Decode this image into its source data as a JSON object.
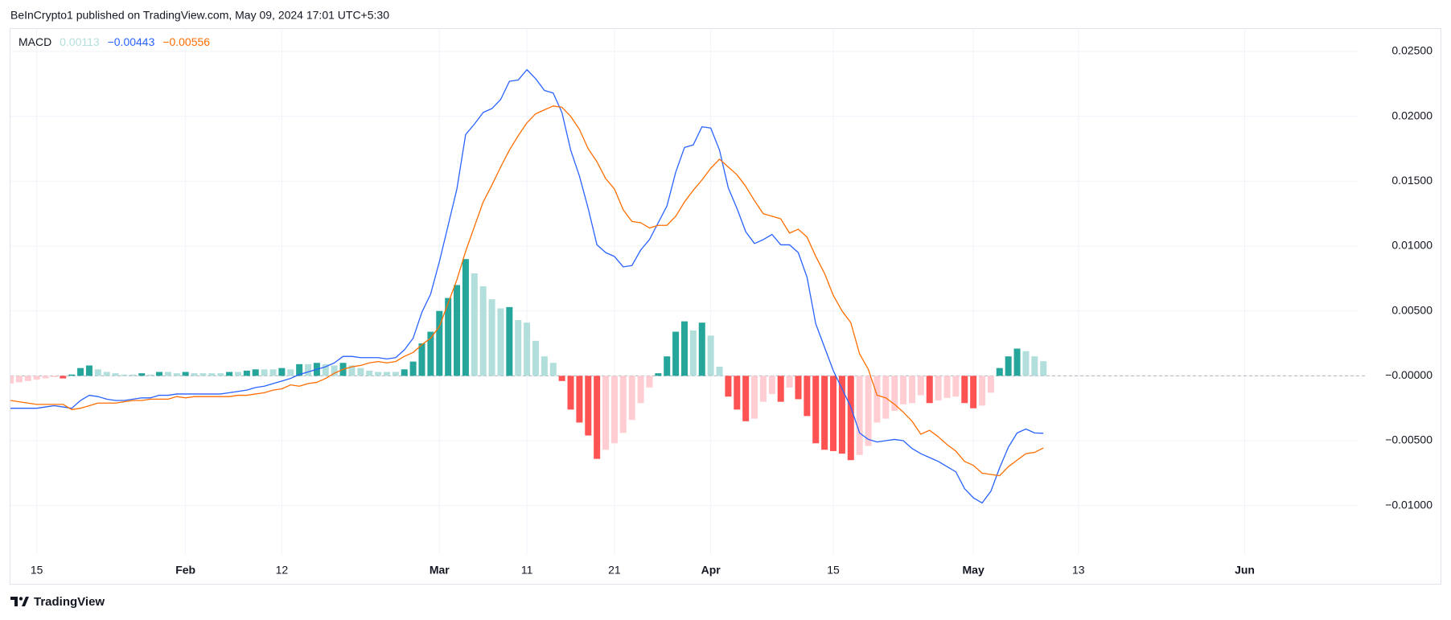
{
  "header": "BeInCrypto1 published on TradingView.com, May 09, 2024 17:01 UTC+5:30",
  "footer": "TradingView",
  "chart_data": {
    "type": "macd",
    "legend": {
      "label": "MACD",
      "values": [
        {
          "value": 0.00113,
          "label": "0.00113"
        },
        {
          "value": -0.00443,
          "label": "−0.00443"
        },
        {
          "value": -0.00556,
          "label": "−0.00556"
        }
      ]
    },
    "x": [
      "2024-01-12",
      "2024-01-13",
      "2024-01-14",
      "2024-01-15",
      "2024-01-16",
      "2024-01-17",
      "2024-01-18",
      "2024-01-19",
      "2024-01-20",
      "2024-01-21",
      "2024-01-22",
      "2024-01-23",
      "2024-01-24",
      "2024-01-25",
      "2024-01-26",
      "2024-01-27",
      "2024-01-28",
      "2024-01-29",
      "2024-01-30",
      "2024-01-31",
      "2024-02-01",
      "2024-02-02",
      "2024-02-03",
      "2024-02-04",
      "2024-02-05",
      "2024-02-06",
      "2024-02-07",
      "2024-02-08",
      "2024-02-09",
      "2024-02-10",
      "2024-02-11",
      "2024-02-12",
      "2024-02-13",
      "2024-02-14",
      "2024-02-15",
      "2024-02-16",
      "2024-02-17",
      "2024-02-18",
      "2024-02-19",
      "2024-02-20",
      "2024-02-21",
      "2024-02-22",
      "2024-02-23",
      "2024-02-24",
      "2024-02-25",
      "2024-02-26",
      "2024-02-27",
      "2024-02-28",
      "2024-02-29",
      "2024-03-01",
      "2024-03-02",
      "2024-03-03",
      "2024-03-04",
      "2024-03-05",
      "2024-03-06",
      "2024-03-07",
      "2024-03-08",
      "2024-03-09",
      "2024-03-10",
      "2024-03-11",
      "2024-03-12",
      "2024-03-13",
      "2024-03-14",
      "2024-03-15",
      "2024-03-16",
      "2024-03-17",
      "2024-03-18",
      "2024-03-19",
      "2024-03-20",
      "2024-03-21",
      "2024-03-22",
      "2024-03-23",
      "2024-03-24",
      "2024-03-25",
      "2024-03-26",
      "2024-03-27",
      "2024-03-28",
      "2024-03-29",
      "2024-03-30",
      "2024-03-31",
      "2024-04-01",
      "2024-04-02",
      "2024-04-03",
      "2024-04-04",
      "2024-04-05",
      "2024-04-06",
      "2024-04-07",
      "2024-04-08",
      "2024-04-09",
      "2024-04-10",
      "2024-04-11",
      "2024-04-12",
      "2024-04-13",
      "2024-04-14",
      "2024-04-15",
      "2024-04-16",
      "2024-04-17",
      "2024-04-18",
      "2024-04-19",
      "2024-04-20",
      "2024-04-21",
      "2024-04-22",
      "2024-04-23",
      "2024-04-24",
      "2024-04-25",
      "2024-04-26",
      "2024-04-27",
      "2024-04-28",
      "2024-04-29",
      "2024-04-30",
      "2024-05-01",
      "2024-05-02",
      "2024-05-03",
      "2024-05-04",
      "2024-05-05",
      "2024-05-06",
      "2024-05-07",
      "2024-05-08",
      "2024-05-09"
    ],
    "series": [
      {
        "kind": "histogram",
        "colors": {
          "grow_above": "#26a69a",
          "fall_above": "#b2dfdb",
          "grow_below": "#ffcdd2",
          "fall_below": "#ff5252"
        },
        "values": [
          -0.0006,
          -0.0005,
          -0.0004,
          -0.0003,
          -0.0002,
          -0.0001,
          -0.0002,
          0.0001,
          0.0006,
          0.0008,
          0.0005,
          0.0003,
          0.0002,
          0.0001,
          0.0001,
          0.0002,
          0.0001,
          0.0003,
          0.0003,
          0.0002,
          0.0003,
          0.0002,
          0.0002,
          0.0002,
          0.0002,
          0.0003,
          0.0003,
          0.0004,
          0.0005,
          0.0005,
          0.0005,
          0.0006,
          0.0005,
          0.0009,
          0.0009,
          0.001,
          0.0009,
          0.0008,
          0.001,
          0.0008,
          0.0006,
          0.0004,
          0.0003,
          0.0003,
          0.0003,
          0.0005,
          0.0011,
          0.0025,
          0.0034,
          0.005,
          0.006,
          0.007,
          0.009,
          0.0079,
          0.0069,
          0.0059,
          0.0052,
          0.0053,
          0.0043,
          0.0041,
          0.0027,
          0.0015,
          0.001,
          -0.0004,
          -0.0026,
          -0.0036,
          -0.0046,
          -0.0064,
          -0.0057,
          -0.0052,
          -0.0044,
          -0.0034,
          -0.0021,
          -0.0009,
          0.0002,
          0.0015,
          0.0034,
          0.0042,
          0.0035,
          0.0041,
          0.0031,
          0.0007,
          -0.0016,
          -0.0026,
          -0.0035,
          -0.0033,
          -0.002,
          -0.0014,
          -0.002,
          -0.0009,
          -0.0018,
          -0.0031,
          -0.0052,
          -0.0057,
          -0.0058,
          -0.006,
          -0.0065,
          -0.0061,
          -0.0054,
          -0.0036,
          -0.0033,
          -0.0027,
          -0.0022,
          -0.0021,
          -0.0015,
          -0.0021,
          -0.0019,
          -0.0017,
          -0.0016,
          -0.0021,
          -0.0025,
          -0.0023,
          -0.0013,
          0.0006,
          0.0015,
          0.0021,
          0.0019,
          0.0015,
          0.00113
        ]
      },
      {
        "kind": "line",
        "color": "#2962ff",
        "values": [
          -0.0025,
          -0.0025,
          -0.0025,
          -0.0025,
          -0.0024,
          -0.0023,
          -0.0024,
          -0.0025,
          -0.0019,
          -0.0015,
          -0.0016,
          -0.0018,
          -0.0019,
          -0.0019,
          -0.0018,
          -0.0017,
          -0.0017,
          -0.0015,
          -0.0015,
          -0.0014,
          -0.0014,
          -0.0014,
          -0.0014,
          -0.0014,
          -0.0014,
          -0.0013,
          -0.0012,
          -0.0011,
          -0.0009,
          -0.0008,
          -0.0006,
          -0.0004,
          -0.0002,
          0.0001,
          0.0003,
          0.0005,
          0.0007,
          0.001,
          0.0015,
          0.0015,
          0.0014,
          0.0014,
          0.0014,
          0.0013,
          0.0014,
          0.002,
          0.0029,
          0.0049,
          0.0063,
          0.0088,
          0.0116,
          0.0144,
          0.0186,
          0.0194,
          0.0203,
          0.0206,
          0.0213,
          0.0227,
          0.0228,
          0.0236,
          0.0229,
          0.022,
          0.0218,
          0.0203,
          0.0174,
          0.0154,
          0.0129,
          0.0101,
          0.0095,
          0.0092,
          0.0084,
          0.0085,
          0.0097,
          0.0105,
          0.0118,
          0.0131,
          0.0157,
          0.0176,
          0.0178,
          0.0192,
          0.0191,
          0.0174,
          0.0145,
          0.0129,
          0.0111,
          0.0102,
          0.0105,
          0.0109,
          0.0101,
          0.0101,
          0.0095,
          0.0076,
          0.004,
          0.0022,
          0.0004,
          -0.001,
          -0.0024,
          -0.0044,
          -0.0049,
          -0.0051,
          -0.005,
          -0.0049,
          -0.005,
          -0.0056,
          -0.006,
          -0.0063,
          -0.0066,
          -0.007,
          -0.0074,
          -0.0087,
          -0.0094,
          -0.0098,
          -0.0089,
          -0.0071,
          -0.0055,
          -0.0044,
          -0.0041,
          -0.0044,
          -0.00443
        ]
      },
      {
        "kind": "line",
        "color": "#ff6d00",
        "values": [
          -0.0019,
          -0.002,
          -0.0021,
          -0.0022,
          -0.0022,
          -0.0022,
          -0.0022,
          -0.0026,
          -0.0025,
          -0.0023,
          -0.0021,
          -0.0021,
          -0.0021,
          -0.002,
          -0.0019,
          -0.0019,
          -0.0018,
          -0.0018,
          -0.0018,
          -0.0016,
          -0.0017,
          -0.0016,
          -0.0016,
          -0.0016,
          -0.0016,
          -0.0016,
          -0.0015,
          -0.0015,
          -0.0014,
          -0.0013,
          -0.0011,
          -0.001,
          -0.0007,
          -0.0008,
          -0.0006,
          -0.0005,
          -0.0002,
          0.0002,
          0.0005,
          0.0007,
          0.0008,
          0.001,
          0.0011,
          0.001,
          0.0011,
          0.0015,
          0.0018,
          0.0024,
          0.0029,
          0.0038,
          0.0056,
          0.0074,
          0.0096,
          0.0115,
          0.0134,
          0.0147,
          0.0161,
          0.0174,
          0.0185,
          0.0195,
          0.0202,
          0.0205,
          0.0208,
          0.0207,
          0.02,
          0.019,
          0.0175,
          0.0165,
          0.0152,
          0.0144,
          0.0128,
          0.0119,
          0.0118,
          0.0114,
          0.0116,
          0.0116,
          0.0123,
          0.0134,
          0.0143,
          0.0151,
          0.016,
          0.0167,
          0.0161,
          0.0155,
          0.0146,
          0.0135,
          0.0125,
          0.0123,
          0.0121,
          0.011,
          0.0113,
          0.0107,
          0.0092,
          0.0079,
          0.0062,
          0.005,
          0.0041,
          0.0017,
          0.0005,
          -0.0015,
          -0.0017,
          -0.0022,
          -0.0028,
          -0.0035,
          -0.0045,
          -0.0042,
          -0.0047,
          -0.0053,
          -0.0058,
          -0.0066,
          -0.0069,
          -0.0075,
          -0.0076,
          -0.0077,
          -0.007,
          -0.0065,
          -0.006,
          -0.0059,
          -0.00556
        ]
      }
    ],
    "xlim": [
      "2024-01-12",
      "2024-06-14"
    ],
    "xticks": [
      {
        "value": "2024-01-15",
        "label": "15"
      },
      {
        "value": "2024-02-01",
        "label": "Feb"
      },
      {
        "value": "2024-02-12",
        "label": "12"
      },
      {
        "value": "2024-03-01",
        "label": "Mar"
      },
      {
        "value": "2024-03-11",
        "label": "11"
      },
      {
        "value": "2024-03-21",
        "label": "21"
      },
      {
        "value": "2024-04-01",
        "label": "Apr"
      },
      {
        "value": "2024-04-15",
        "label": "15"
      },
      {
        "value": "2024-05-01",
        "label": "May"
      },
      {
        "value": "2024-05-13",
        "label": "13"
      },
      {
        "value": "2024-06-01",
        "label": "Jun"
      }
    ],
    "ylim": [
      -0.0138,
      0.0268
    ],
    "yticks": [
      {
        "value": 0.025,
        "label": "0.02500"
      },
      {
        "value": 0.02,
        "label": "0.02000"
      },
      {
        "value": 0.015,
        "label": "0.01500"
      },
      {
        "value": 0.01,
        "label": "0.01000"
      },
      {
        "value": 0.005,
        "label": "0.00500"
      },
      {
        "value": 0,
        "label": "−0.00000"
      },
      {
        "value": -0.005,
        "label": "−0.00500"
      },
      {
        "value": -0.01,
        "label": "−0.01000"
      }
    ],
    "grid": true
  }
}
